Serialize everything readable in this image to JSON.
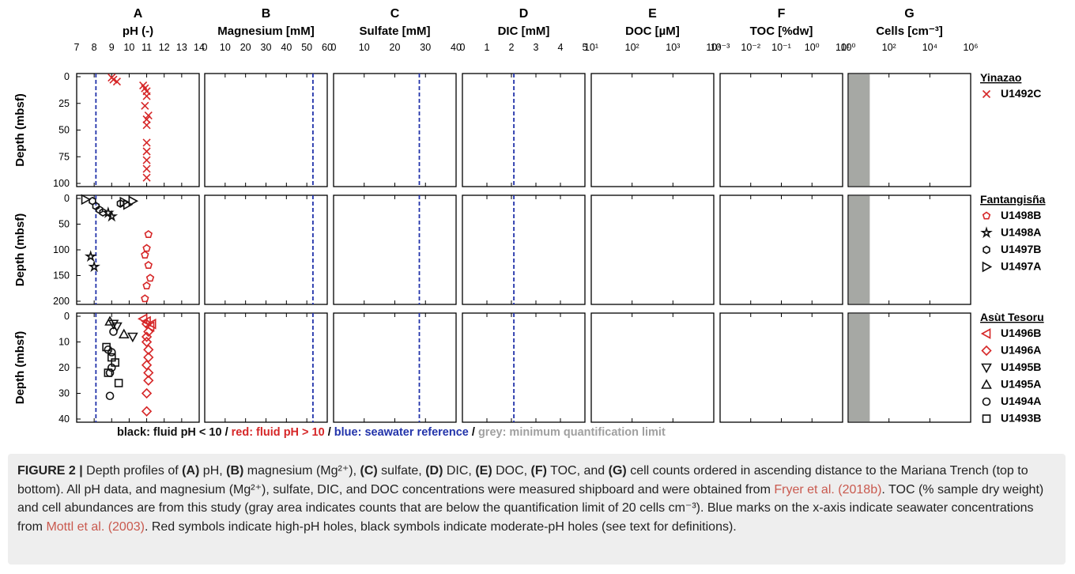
{
  "panels": [
    {
      "letter": "A",
      "title": "pH (-)",
      "scale": "lin",
      "min": 7,
      "max": 14,
      "ticks": [
        "7",
        "8",
        "9",
        "10",
        "11",
        "12",
        "13",
        "14"
      ],
      "ref": 8.1
    },
    {
      "letter": "B",
      "title": "Magnesium [mM]",
      "scale": "lin",
      "min": 0,
      "max": 60,
      "ticks": [
        "0",
        "10",
        "20",
        "30",
        "40",
        "50",
        "60"
      ],
      "ref": 53
    },
    {
      "letter": "C",
      "title": "Sulfate [mM]",
      "scale": "lin",
      "min": 0,
      "max": 40,
      "ticks": [
        "0",
        "10",
        "20",
        "30",
        "40"
      ],
      "ref": 28
    },
    {
      "letter": "D",
      "title": "DIC [mM]",
      "scale": "lin",
      "min": 0,
      "max": 5,
      "ticks": [
        "0",
        "1",
        "2",
        "3",
        "4",
        "5"
      ],
      "ref": 2.1
    },
    {
      "letter": "E",
      "title": "DOC [µM]",
      "scale": "log",
      "min": 1,
      "max": 4,
      "ticks": [
        "10¹",
        "10²",
        "10³",
        "10⁴"
      ],
      "ref": null
    },
    {
      "letter": "F",
      "title": "TOC [%dw]",
      "scale": "log",
      "min": -3,
      "max": 1,
      "ticks": [
        "10⁻³",
        "10⁻²",
        "10⁻¹",
        "10⁰",
        "10¹"
      ],
      "ref": null
    },
    {
      "letter": "G",
      "title": "Cells [cm⁻³]",
      "scale": "log",
      "min": 0,
      "max": 7,
      "ticks": [
        "10⁰",
        "10²",
        "10⁴",
        "10⁶"
      ],
      "ref": null
    }
  ],
  "rows": [
    {
      "ylabel": "Depth (mbsf)",
      "ymin": 0,
      "ymax": 110,
      "yticks": [
        "0",
        "25",
        "50",
        "75",
        "100"
      ],
      "site": "Yinazao",
      "legend": [
        {
          "sym": "x",
          "color": "red",
          "label": "U1492C"
        }
      ]
    },
    {
      "ylabel": "Depth (mbsf)",
      "ymin": 0,
      "ymax": 200,
      "yticks": [
        "0",
        "50",
        "100",
        "150",
        "200"
      ],
      "site": "Fantangisña",
      "legend": [
        {
          "sym": "pentagon",
          "color": "red",
          "label": "U1498B"
        },
        {
          "sym": "star",
          "color": "black",
          "label": "U1498A"
        },
        {
          "sym": "hexagon",
          "color": "black",
          "label": "U1497B"
        },
        {
          "sym": "tri-right",
          "color": "black",
          "label": "U1497A"
        }
      ]
    },
    {
      "ylabel": "Depth (mbsf)",
      "ymin": 0,
      "ymax": 40,
      "yticks": [
        "0",
        "10",
        "20",
        "30",
        "40"
      ],
      "site": "Asùt Tesoru",
      "legend": [
        {
          "sym": "tri-left",
          "color": "red",
          "label": "U1496B"
        },
        {
          "sym": "diamond",
          "color": "red",
          "label": "U1496A"
        },
        {
          "sym": "tri-down",
          "color": "black",
          "label": "U1495B"
        },
        {
          "sym": "tri-up",
          "color": "black",
          "label": "U1495A"
        },
        {
          "sym": "circle",
          "color": "black",
          "label": "U1494A"
        },
        {
          "sym": "square",
          "color": "black",
          "label": "U1493B"
        }
      ]
    }
  ],
  "colors": {
    "red": "#d62728",
    "black": "#111111",
    "blue": "#2233aa",
    "grey": "#a0a0a0"
  },
  "legend_line": {
    "black": "black: fluid pH < 10",
    "sep": "/",
    "red": "red: fluid pH > 10",
    "blue": "blue: seawater reference",
    "grey": "grey: minimum quantification limit"
  },
  "caption": {
    "label": "FIGURE 2 |",
    "text1": " Depth profiles of ",
    "A": "(A)",
    "t2": " pH, ",
    "B": "(B)",
    "t3": " magnesium (Mg²⁺), ",
    "C": "(C)",
    "t4": " sulfate, ",
    "D": "(D)",
    "t5": " DIC, ",
    "E": "(E)",
    "t6": " DOC, ",
    "F": "(F)",
    "t7": " TOC, and ",
    "G": "(G)",
    "t8": " cell counts ordered in ascending distance to the Mariana Trench (top to bottom). All pH data, and magnesium (Mg²⁺), sulfate, DIC, and DOC concentrations were measured shipboard and were obtained from ",
    "ref1": "Fryer et al. (2018b)",
    "t9": ". TOC (% sample dry weight) and cell abundances are from this study (gray area indicates counts that are below the quantification limit of 20 cells cm⁻³). Blue marks on the x-axis indicate seawater concentrations from ",
    "ref2": "Mottl et al. (2003)",
    "t10": ". Red symbols indicate high-pH holes, black symbols indicate moderate-pH holes (see text for definitions)."
  },
  "chart_data": [
    {
      "panel": "A",
      "type": "scatter",
      "series": [
        {
          "row": 0,
          "color": "red",
          "sym": "x",
          "points": [
            [
              9.0,
              1
            ],
            [
              9.1,
              3
            ],
            [
              9.3,
              5
            ],
            [
              10.8,
              9
            ],
            [
              10.9,
              12
            ],
            [
              11.0,
              15
            ],
            [
              11.0,
              20
            ],
            [
              10.9,
              30
            ],
            [
              11.1,
              40
            ],
            [
              11.0,
              44
            ],
            [
              11.0,
              50
            ],
            [
              11.0,
              68
            ],
            [
              11.0,
              77
            ],
            [
              11.0,
              86
            ],
            [
              11.0,
              95
            ],
            [
              11.0,
              104
            ]
          ]
        },
        {
          "row": 1,
          "color": "red",
          "sym": "pentagon",
          "points": [
            [
              11.1,
              70
            ],
            [
              11.0,
              97
            ],
            [
              10.9,
              110
            ],
            [
              11.1,
              130
            ],
            [
              11.2,
              155
            ],
            [
              11.0,
              170
            ],
            [
              10.9,
              195
            ]
          ]
        },
        {
          "row": 1,
          "color": "black",
          "sym": "star",
          "points": [
            [
              7.8,
              113
            ],
            [
              8.0,
              133
            ],
            [
              9.0,
              35
            ],
            [
              8.8,
              28
            ]
          ]
        },
        {
          "row": 1,
          "color": "black",
          "sym": "hexagon",
          "points": [
            [
              7.9,
              5
            ],
            [
              8.1,
              15
            ],
            [
              8.3,
              22
            ],
            [
              8.5,
              27
            ],
            [
              9.5,
              10
            ]
          ]
        },
        {
          "row": 1,
          "color": "black",
          "sym": "tri-right",
          "points": [
            [
              7.5,
              2
            ],
            [
              9.7,
              7
            ],
            [
              10.2,
              5
            ],
            [
              9.9,
              12
            ]
          ]
        },
        {
          "row": 2,
          "color": "red",
          "sym": "tri-left",
          "points": [
            [
              10.8,
              1
            ],
            [
              11.0,
              2
            ],
            [
              11.2,
              4
            ],
            [
              11.3,
              3
            ]
          ]
        },
        {
          "row": 2,
          "color": "red",
          "sym": "diamond",
          "points": [
            [
              11.0,
              3
            ],
            [
              11.1,
              6
            ],
            [
              11.0,
              8
            ],
            [
              11.0,
              10
            ],
            [
              11.1,
              13
            ],
            [
              11.1,
              16
            ],
            [
              11.0,
              19
            ],
            [
              11.1,
              22
            ],
            [
              11.1,
              25
            ],
            [
              11.0,
              30
            ],
            [
              11.0,
              37
            ]
          ]
        },
        {
          "row": 2,
          "color": "black",
          "sym": "tri-down",
          "points": [
            [
              9.1,
              3
            ],
            [
              9.3,
              4
            ],
            [
              10.2,
              8
            ]
          ]
        },
        {
          "row": 2,
          "color": "black",
          "sym": "tri-up",
          "points": [
            [
              8.9,
              2
            ],
            [
              9.7,
              7
            ]
          ]
        },
        {
          "row": 2,
          "color": "black",
          "sym": "circle",
          "points": [
            [
              9.1,
              6
            ],
            [
              8.8,
              13
            ],
            [
              9.0,
              14
            ],
            [
              9.0,
              20
            ],
            [
              8.9,
              22
            ],
            [
              8.9,
              31
            ]
          ]
        },
        {
          "row": 2,
          "color": "black",
          "sym": "square",
          "points": [
            [
              8.7,
              12
            ],
            [
              9.0,
              16
            ],
            [
              9.2,
              18
            ],
            [
              9.4,
              26
            ],
            [
              8.8,
              22
            ]
          ]
        }
      ]
    }
  ]
}
